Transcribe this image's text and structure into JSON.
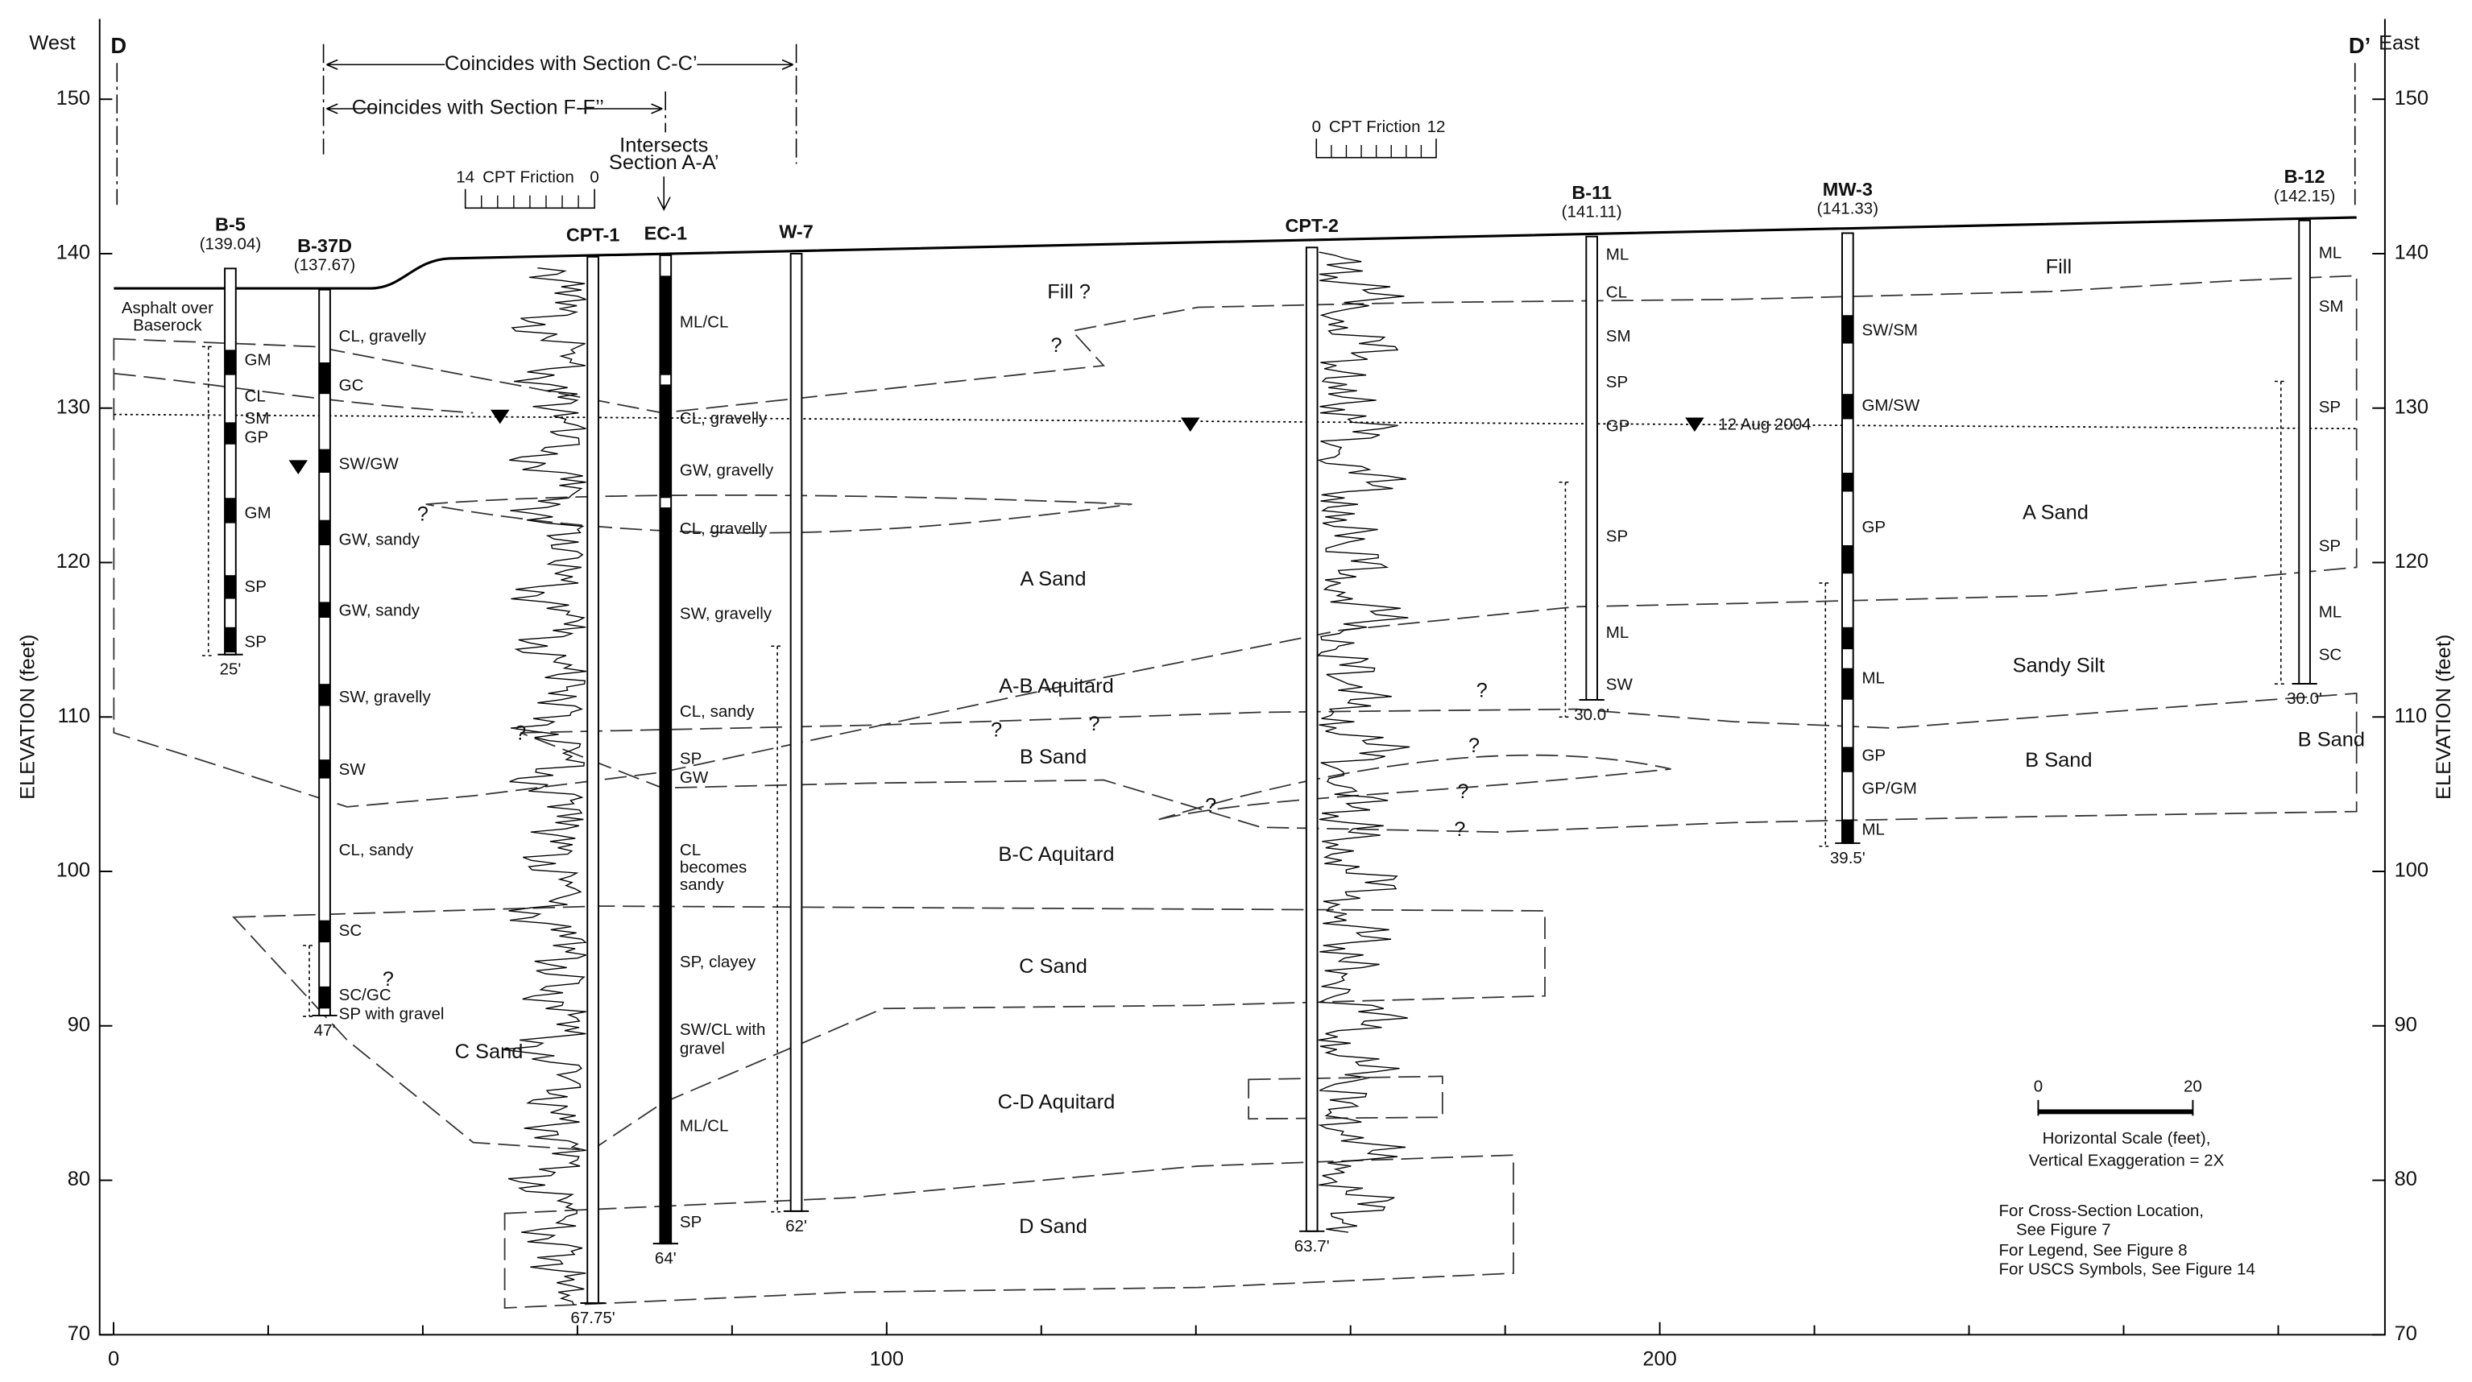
{
  "header": {
    "west": "West",
    "east": "East",
    "section_start": "D",
    "section_end": "D’"
  },
  "annotations": {
    "coincides_cc": "Coincides with Section C-C’",
    "coincides_ff": "Coincides with Section F-F’’",
    "intersects": [
      "Intersects",
      "Section A-A’"
    ],
    "water_date": "12 Aug 2004",
    "asphalt": [
      "Asphalt over",
      "Baserock"
    ]
  },
  "cpt_scales": [
    {
      "title": "CPT Friction",
      "ticks": [
        14,
        0
      ]
    },
    {
      "title": "CPT Friction",
      "ticks": [
        0,
        12
      ]
    }
  ],
  "axes": {
    "y_label": "ELEVATION (feet)",
    "ylim": [
      70,
      155.2
    ],
    "yticks": [
      70,
      80,
      90,
      100,
      110,
      120,
      130,
      140,
      150
    ],
    "xlim": [
      -1.8,
      293.8
    ],
    "xticks": [
      0,
      100,
      200
    ],
    "x_minor_ticks": [
      20,
      40,
      60,
      80,
      120,
      140,
      160,
      180,
      220,
      240,
      260,
      280
    ]
  },
  "borings": [
    {
      "name": "B-5",
      "x": 15.1,
      "surface": {
        "value": 139.04,
        "label": "(139.04)"
      },
      "depth": {
        "value": 25,
        "label": "25'"
      },
      "soils": [
        "GM",
        "CL",
        "SM",
        "GP",
        "GM",
        "SP",
        "SP"
      ]
    },
    {
      "name": "B-37D",
      "x": 27.3,
      "surface": {
        "value": 137.67,
        "label": "(137.67)"
      },
      "depth": {
        "value": 47,
        "label": "47'"
      },
      "soils": [
        "CL, gravelly",
        "GC",
        "SW/GW",
        "GW, sandy",
        "GW, sandy",
        "SW, gravelly",
        "SW",
        "CL, sandy",
        "SC",
        "SC/GC",
        "SP with gravel"
      ]
    },
    {
      "name": "CPT-1",
      "x": 62.0,
      "surface": 139.8,
      "depth": {
        "value": 67.75,
        "label": "67.75'"
      },
      "soils": []
    },
    {
      "name": "EC-1",
      "x": 71.4,
      "surface": 139.9,
      "depth": {
        "value": 64,
        "label": "64'"
      },
      "soils": [
        "ML/CL",
        "CL, gravelly",
        "GW, gravelly",
        "CL, gravelly",
        "SW, gravelly",
        "CL, sandy",
        "SP",
        "GW",
        "CL",
        "becomes",
        "sandy",
        "SP, clayey",
        "SW/CL with",
        "gravel",
        "ML/CL",
        "SP"
      ]
    },
    {
      "name": "W-7",
      "x": 88.3,
      "surface": 140.0,
      "depth": {
        "value": 62,
        "label": "62'"
      },
      "soils": []
    },
    {
      "name": "CPT-2",
      "x": 155.0,
      "surface": 140.4,
      "depth": {
        "value": 63.7,
        "label": "63.7'"
      },
      "soils": []
    },
    {
      "name": "B-11",
      "x": 191.2,
      "surface": {
        "value": 141.11,
        "label": "(141.11)"
      },
      "depth": {
        "value": 30,
        "label": "30.0'"
      },
      "soils": [
        "ML",
        "CL",
        "SM",
        "SP",
        "GP",
        "SP",
        "ML",
        "SW"
      ]
    },
    {
      "name": "MW-3",
      "x": 224.3,
      "surface": {
        "value": 141.33,
        "label": "(141.33)"
      },
      "depth": {
        "value": 39.5,
        "label": "39.5'"
      },
      "soils": [
        "SW/SM",
        "GM/SW",
        "GP",
        "ML",
        "GP",
        "GP/GM",
        "ML"
      ]
    },
    {
      "name": "B-12",
      "x": 283.4,
      "surface": {
        "value": 142.15,
        "label": "(142.15)"
      },
      "depth": {
        "value": 30,
        "label": "30.0'"
      },
      "soils": [
        "ML",
        "SM",
        "SP",
        "SP",
        "ML",
        "SC"
      ]
    }
  ],
  "units": [
    "Fill ?",
    "Fill",
    "A Sand",
    "A Sand",
    "A-B Aquitard",
    "Sandy Silt",
    "B Sand",
    "B Sand",
    "B Sand",
    "B-C Aquitard",
    "C Sand",
    "C Sand",
    "C-D Aquitard",
    "D Sand"
  ],
  "question_marks": [
    "?",
    "?",
    "?",
    "?",
    "?",
    "?",
    "?",
    "?",
    "?",
    "?",
    "?"
  ],
  "scale_bar": {
    "ticks": [
      0,
      20
    ],
    "caption": [
      "Horizontal Scale (feet),",
      "Vertical Exaggeration = 2X"
    ]
  },
  "notes": [
    "For Cross-Section Location,",
    "See Figure 7",
    "For Legend, See Figure 8",
    "For USCS Symbols, See Figure 14"
  ]
}
